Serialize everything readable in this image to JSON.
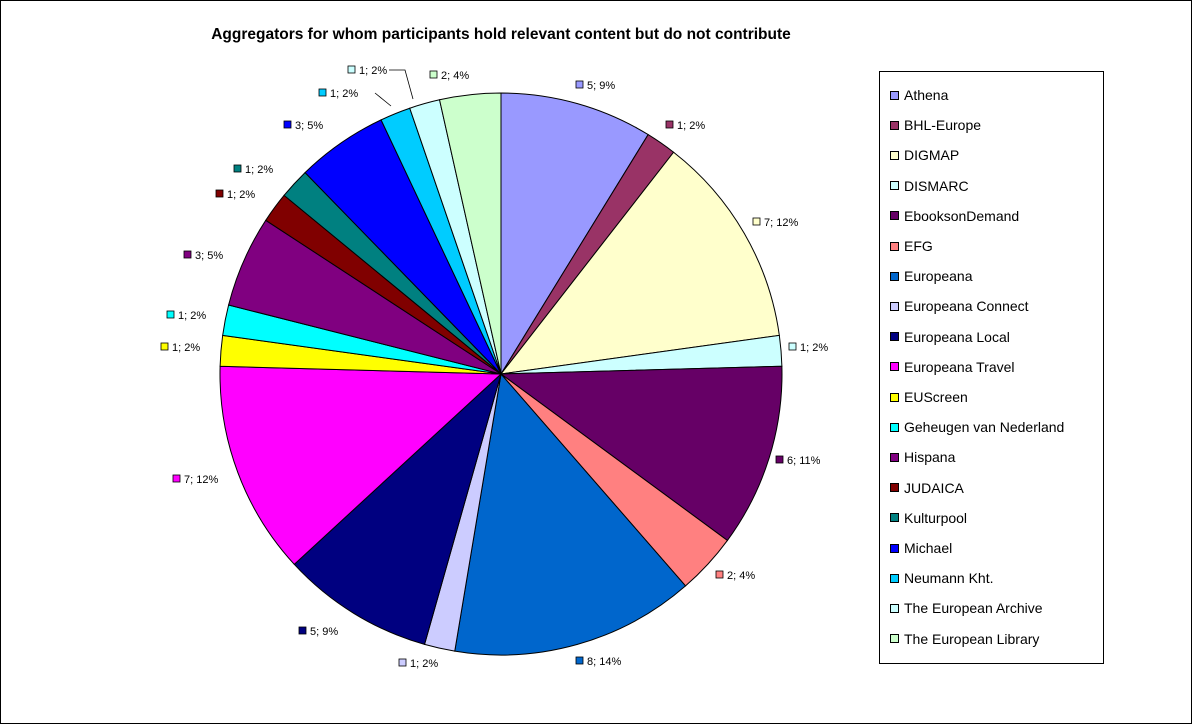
{
  "chart_data": {
    "type": "pie",
    "title": "Aggregators for whom participants hold relevant content but do not contribute",
    "legend_position": "right",
    "slices": [
      {
        "name": "Athena",
        "value": 5,
        "percent": "9%",
        "label": "5; 9%",
        "color": "#9999FF"
      },
      {
        "name": "BHL-Europe",
        "value": 1,
        "percent": "2%",
        "label": "1; 2%",
        "color": "#993366"
      },
      {
        "name": "DIGMAP",
        "value": 7,
        "percent": "12%",
        "label": "7; 12%",
        "color": "#FFFFCC"
      },
      {
        "name": "DISMARC",
        "value": 1,
        "percent": "2%",
        "label": "1; 2%",
        "color": "#CCFFFF"
      },
      {
        "name": "EbooksonDemand",
        "value": 6,
        "percent": "11%",
        "label": "6; 11%",
        "color": "#660066"
      },
      {
        "name": "EFG",
        "value": 2,
        "percent": "4%",
        "label": "2; 4%",
        "color": "#FF8080"
      },
      {
        "name": "Europeana",
        "value": 8,
        "percent": "14%",
        "label": "8; 14%",
        "color": "#0066CC"
      },
      {
        "name": "Europeana Connect",
        "value": 1,
        "percent": "2%",
        "label": "1; 2%",
        "color": "#CCCCFF"
      },
      {
        "name": "Europeana Local",
        "value": 5,
        "percent": "9%",
        "label": "5; 9%",
        "color": "#000080"
      },
      {
        "name": "Europeana Travel",
        "value": 7,
        "percent": "12%",
        "label": "7; 12%",
        "color": "#FF00FF"
      },
      {
        "name": "EUScreen",
        "value": 1,
        "percent": "2%",
        "label": "1; 2%",
        "color": "#FFFF00"
      },
      {
        "name": "Geheugen van Nederland",
        "value": 1,
        "percent": "2%",
        "label": "1; 2%",
        "color": "#00FFFF"
      },
      {
        "name": "Hispana",
        "value": 3,
        "percent": "5%",
        "label": "3; 5%",
        "color": "#800080"
      },
      {
        "name": "JUDAICA",
        "value": 1,
        "percent": "2%",
        "label": "1; 2%",
        "color": "#800000"
      },
      {
        "name": "Kulturpool",
        "value": 1,
        "percent": "2%",
        "label": "1; 2%",
        "color": "#008080"
      },
      {
        "name": "Michael",
        "value": 3,
        "percent": "5%",
        "label": "3; 5%",
        "color": "#0000FF"
      },
      {
        "name": "Neumann Kht.",
        "value": 1,
        "percent": "2%",
        "label": "1; 2%",
        "color": "#00CCFF"
      },
      {
        "name": "The European Archive",
        "value": 1,
        "percent": "2%",
        "label": "1; 2%",
        "color": "#CCFFFF"
      },
      {
        "name": "The European Library",
        "value": 2,
        "percent": "4%",
        "label": "2; 4%",
        "color": "#CCFFCC"
      }
    ]
  }
}
